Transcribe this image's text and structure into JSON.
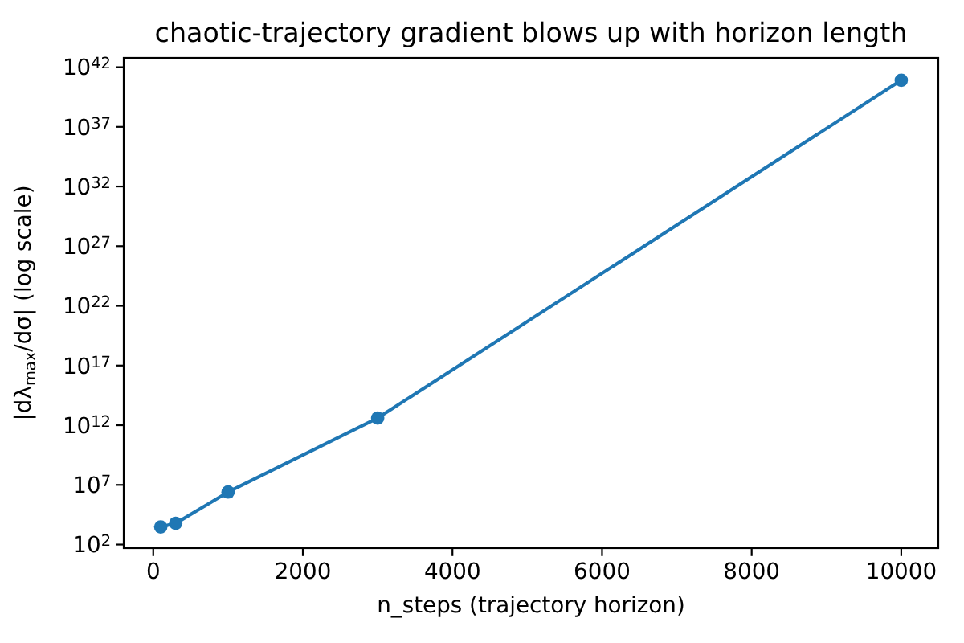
{
  "chart_data": {
    "type": "line",
    "title": "chaotic-trajectory gradient blows up with horizon length",
    "xlabel": "n_steps (trajectory horizon)",
    "ylabel": "|dλ$_{max}$/dσ| (log scale)",
    "x": [
      100,
      300,
      1000,
      3000,
      10000
    ],
    "series": [
      {
        "color": "#1f77b4",
        "values": [
          3000,
          6000,
          2500000.0,
          4000000000000.0,
          8e+40
        ]
      }
    ],
    "log": "y",
    "marker": "circle",
    "line_style": "solid",
    "grid": false,
    "xlim": [
      -395,
      10495
    ],
    "ylim": [
      50,
      6e+42
    ],
    "xticks": [
      0,
      2000,
      4000,
      6000,
      8000,
      10000
    ],
    "yticks": [
      {
        "value": 100.0,
        "label": "10$^{2}$"
      },
      {
        "value": 10000000.0,
        "label": "10$^{7}$"
      },
      {
        "value": 1000000000000.0,
        "label": "10$^{12}$"
      },
      {
        "value": 1e+17,
        "label": "10$^{17}$"
      },
      {
        "value": 1e+22,
        "label": "10$^{22}$"
      },
      {
        "value": 1e+27,
        "label": "10$^{27}$"
      },
      {
        "value": 1e+32,
        "label": "10$^{32}$"
      },
      {
        "value": 1e+37,
        "label": "10$^{37}$"
      },
      {
        "value": 1e+42,
        "label": "10$^{42}$"
      }
    ]
  }
}
